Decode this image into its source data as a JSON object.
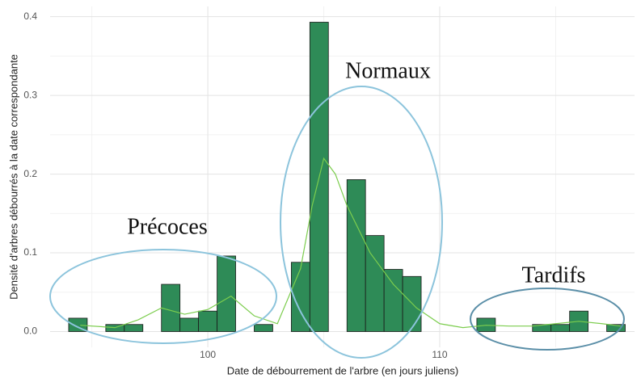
{
  "chart_data": {
    "type": "histogram",
    "xlabel": "Date de débourrement de l'arbre (en jours juliens)",
    "ylabel": "Densité d'arbres débourrés à la date correspondante",
    "bins": [
      94,
      94.8,
      95.6,
      96.4,
      97.2,
      98,
      98.8,
      99.6,
      100.4,
      101.2,
      102,
      102.8,
      103.6,
      104.4,
      105.2,
      106,
      106.8,
      107.6,
      108.4,
      109.2,
      110,
      110.8,
      111.6,
      112.4,
      113.2,
      114,
      114.8,
      115.6,
      116.4,
      117.2,
      118
    ],
    "values": [
      0.017,
      0,
      0.009,
      0.009,
      0,
      0.06,
      0.017,
      0.026,
      0.096,
      0,
      0.009,
      0,
      0.088,
      0.393,
      0,
      0.193,
      0.122,
      0.079,
      0.07,
      0,
      0,
      0,
      0.017,
      0,
      0,
      0.009,
      0.009,
      0.026,
      0,
      0.009
    ],
    "color": "#2e8b57",
    "density": {
      "color": "#7ccd4e",
      "x": [
        94.5,
        96,
        97,
        98,
        99,
        100,
        101,
        102,
        103,
        104,
        104.5,
        105,
        105.5,
        106,
        107,
        108,
        109,
        110,
        111,
        112,
        113,
        114,
        115,
        116,
        117,
        117.8
      ],
      "values": [
        0.008,
        0.005,
        0.015,
        0.03,
        0.022,
        0.028,
        0.045,
        0.02,
        0.01,
        0.08,
        0.16,
        0.22,
        0.2,
        0.16,
        0.1,
        0.06,
        0.03,
        0.01,
        0.005,
        0.008,
        0.007,
        0.007,
        0.01,
        0.013,
        0.01,
        0.007
      ]
    },
    "xlim": [
      93.2,
      118.4
    ],
    "xticks": [
      100,
      110
    ],
    "xminor": [
      95,
      105,
      115
    ],
    "ylim": [
      -0.02,
      0.413
    ],
    "yticks": [
      {
        "value": 0,
        "label": "0.0"
      },
      0.1,
      0.2,
      0.3,
      0.4
    ],
    "yminor": [
      0.05,
      0.15,
      0.25,
      0.35
    ],
    "grid": true,
    "annotations": [
      "Précoces",
      "Normaux",
      "Tardifs"
    ]
  }
}
